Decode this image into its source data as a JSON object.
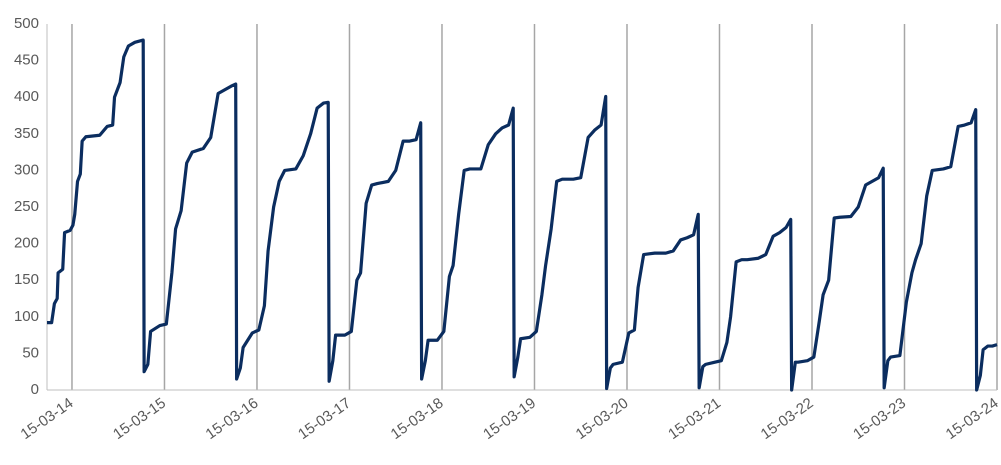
{
  "chart_data": {
    "type": "line",
    "color": "#0b2d5f",
    "xlim": [
      -0.27,
      10
    ],
    "ylim": [
      0,
      500
    ],
    "xticks": [
      {
        "value": 0,
        "label": "15-03-14"
      },
      {
        "value": 1,
        "label": "15-03-15"
      },
      {
        "value": 2,
        "label": "15-03-16"
      },
      {
        "value": 3,
        "label": "15-03-17"
      },
      {
        "value": 4,
        "label": "15-03-18"
      },
      {
        "value": 5,
        "label": "15-03-19"
      },
      {
        "value": 6,
        "label": "15-03-20"
      },
      {
        "value": 7,
        "label": "15-03-21"
      },
      {
        "value": 8,
        "label": "15-03-22"
      },
      {
        "value": 9,
        "label": "15-03-23"
      },
      {
        "value": 10,
        "label": "15-03-24"
      }
    ],
    "yticks": [
      0,
      50,
      100,
      150,
      200,
      250,
      300,
      350,
      400,
      450,
      500
    ],
    "grid": true,
    "x": [
      -0.27,
      -0.22,
      -0.19,
      -0.16,
      -0.15,
      -0.1,
      -0.08,
      -0.02,
      0.01,
      0.03,
      0.06,
      0.09,
      0.11,
      0.15,
      0.3,
      0.38,
      0.44,
      0.46,
      0.52,
      0.56,
      0.61,
      0.68,
      0.77,
      0.78,
      0.82,
      0.85,
      0.95,
      1.02,
      1.08,
      1.12,
      1.18,
      1.24,
      1.3,
      1.42,
      1.5,
      1.58,
      1.65,
      1.72,
      1.77,
      1.78,
      1.82,
      1.85,
      1.95,
      2.02,
      2.08,
      2.12,
      2.18,
      2.24,
      2.3,
      2.42,
      2.5,
      2.58,
      2.65,
      2.72,
      2.77,
      2.78,
      2.82,
      2.85,
      2.95,
      3.02,
      3.08,
      3.12,
      3.18,
      3.24,
      3.3,
      3.42,
      3.5,
      3.58,
      3.65,
      3.72,
      3.77,
      3.78,
      3.82,
      3.85,
      3.95,
      4.02,
      4.08,
      4.12,
      4.18,
      4.24,
      4.3,
      4.42,
      4.5,
      4.58,
      4.65,
      4.72,
      4.77,
      4.78,
      4.82,
      4.85,
      4.95,
      5.02,
      5.08,
      5.12,
      5.18,
      5.24,
      5.3,
      5.42,
      5.5,
      5.58,
      5.65,
      5.72,
      5.77,
      5.78,
      5.82,
      5.85,
      5.95,
      6.02,
      6.08,
      6.12,
      6.18,
      6.24,
      6.3,
      6.42,
      6.5,
      6.58,
      6.65,
      6.72,
      6.77,
      6.78,
      6.82,
      6.85,
      6.95,
      7.02,
      7.08,
      7.12,
      7.18,
      7.24,
      7.3,
      7.42,
      7.5,
      7.58,
      7.65,
      7.72,
      7.77,
      7.78,
      7.82,
      7.85,
      7.95,
      8.02,
      8.08,
      8.12,
      8.18,
      8.24,
      8.3,
      8.42,
      8.5,
      8.58,
      8.65,
      8.72,
      8.77,
      8.78,
      8.82,
      8.85,
      8.95,
      9.02,
      9.08,
      9.12,
      9.18,
      9.24,
      9.3,
      9.42,
      9.5,
      9.58,
      9.65,
      9.72,
      9.77,
      9.78,
      9.82,
      9.85,
      9.9,
      9.95,
      10.0
    ],
    "values": [
      92,
      92,
      118,
      125,
      160,
      165,
      215,
      218,
      225,
      240,
      285,
      295,
      340,
      346,
      348,
      360,
      362,
      400,
      420,
      455,
      470,
      475,
      478,
      25,
      35,
      80,
      88,
      90,
      160,
      220,
      245,
      310,
      325,
      330,
      345,
      405,
      410,
      415,
      418,
      15,
      30,
      58,
      78,
      82,
      115,
      190,
      250,
      285,
      300,
      302,
      320,
      350,
      385,
      392,
      393,
      12,
      40,
      75,
      75,
      80,
      150,
      160,
      255,
      280,
      282,
      285,
      300,
      340,
      340,
      342,
      365,
      15,
      40,
      68,
      68,
      80,
      155,
      170,
      240,
      300,
      302,
      302,
      335,
      350,
      358,
      362,
      385,
      18,
      45,
      70,
      72,
      80,
      130,
      170,
      220,
      285,
      288,
      288,
      290,
      345,
      355,
      362,
      401,
      2,
      30,
      35,
      38,
      78,
      82,
      140,
      185,
      186,
      187,
      187,
      190,
      205,
      208,
      212,
      240,
      3,
      32,
      35,
      38,
      40,
      65,
      100,
      175,
      178,
      178,
      180,
      185,
      210,
      215,
      222,
      233,
      0,
      38,
      38,
      40,
      45,
      95,
      130,
      150,
      235,
      236,
      237,
      250,
      280,
      285,
      290,
      303,
      3,
      40,
      45,
      47,
      120,
      160,
      178,
      200,
      265,
      300,
      302,
      305,
      360,
      362,
      365,
      383,
      0,
      20,
      55,
      60,
      60,
      62
    ]
  }
}
